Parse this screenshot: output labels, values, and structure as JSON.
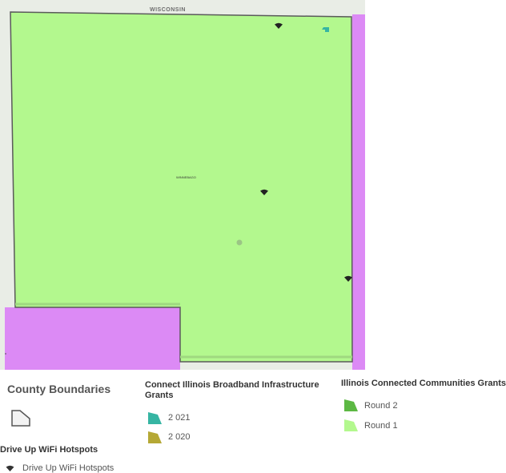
{
  "map": {
    "state_label": "WISCONSIN",
    "county_label": "WINNEBAGO",
    "colors": {
      "round1_fill": "#b3f88e",
      "neighbor_fill": "#dc8af5",
      "base_fill": "#e9ede6",
      "boundary": "#5a5a5a",
      "grant_2021": "#36b5a3"
    },
    "hotspot_icon": "wifi-icon"
  },
  "legend": {
    "county_boundaries": {
      "title": "County Boundaries",
      "icon": "county-polygon-icon"
    },
    "connect_illinois": {
      "title": "Connect Illinois Broadband Infrastructure Grants",
      "items": [
        {
          "label": "2 021",
          "color": "#36b5a3"
        },
        {
          "label": "2 020",
          "color": "#b5a835"
        }
      ]
    },
    "connected_communities": {
      "title": "Illinois Connected Communities Grants",
      "items": [
        {
          "label": "Round 2",
          "color": "#5cb843"
        },
        {
          "label": "Round 1",
          "color": "#b3f88e"
        }
      ]
    },
    "hotspots": {
      "title": "Drive Up WiFi Hotspots",
      "item_label": "Drive Up WiFi Hotspots",
      "icon": "wifi-icon"
    }
  }
}
